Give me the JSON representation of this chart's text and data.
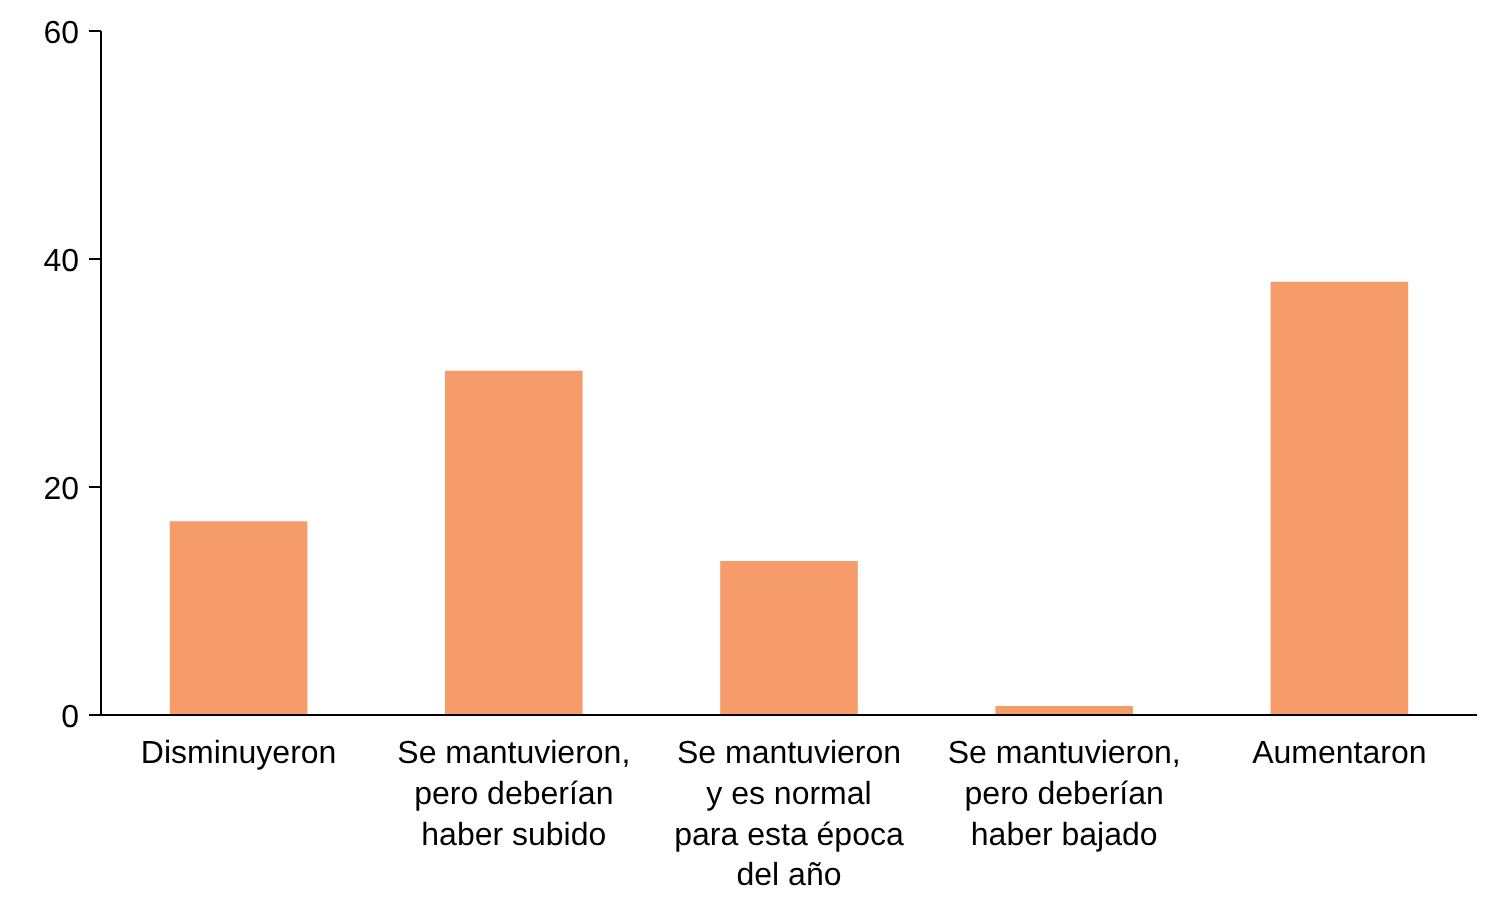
{
  "chart_data": {
    "type": "bar",
    "categories": [
      "Disminuyeron",
      "Se mantuvieron, pero deberían haber subido",
      "Se mantuvieron y es normal para esta época del año",
      "Se mantuvieron, pero deberían haber bajado",
      "Aumentaron"
    ],
    "values": [
      17,
      30.2,
      13.5,
      0.8,
      38
    ],
    "color": "#f59c6a",
    "ylim": [
      0,
      60
    ],
    "yticks": [
      0,
      20,
      40,
      60
    ],
    "grid": false
  }
}
